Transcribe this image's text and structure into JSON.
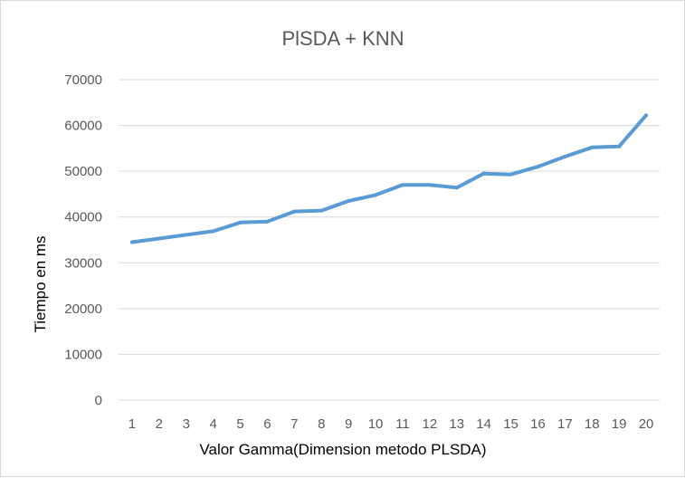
{
  "chart_data": {
    "type": "line",
    "title": "PlSDA + KNN",
    "xlabel": "Valor Gamma(Dimension metodo PLSDA)",
    "ylabel": "Tiempo en ms",
    "categories": [
      "1",
      "2",
      "3",
      "4",
      "5",
      "6",
      "7",
      "8",
      "9",
      "10",
      "11",
      "12",
      "13",
      "14",
      "15",
      "16",
      "17",
      "18",
      "19",
      "20"
    ],
    "yticks": [
      "0",
      "10000",
      "20000",
      "30000",
      "40000",
      "50000",
      "60000",
      "70000"
    ],
    "ylim": [
      0,
      70000
    ],
    "grid": true,
    "legend": "none",
    "series": [
      {
        "color": "#5b9bd5",
        "values": [
          34500,
          35300,
          36100,
          36900,
          38800,
          39000,
          41200,
          41400,
          43500,
          44800,
          47000,
          47000,
          46400,
          49500,
          49300,
          51000,
          53200,
          55200,
          55400,
          62200
        ]
      }
    ]
  }
}
